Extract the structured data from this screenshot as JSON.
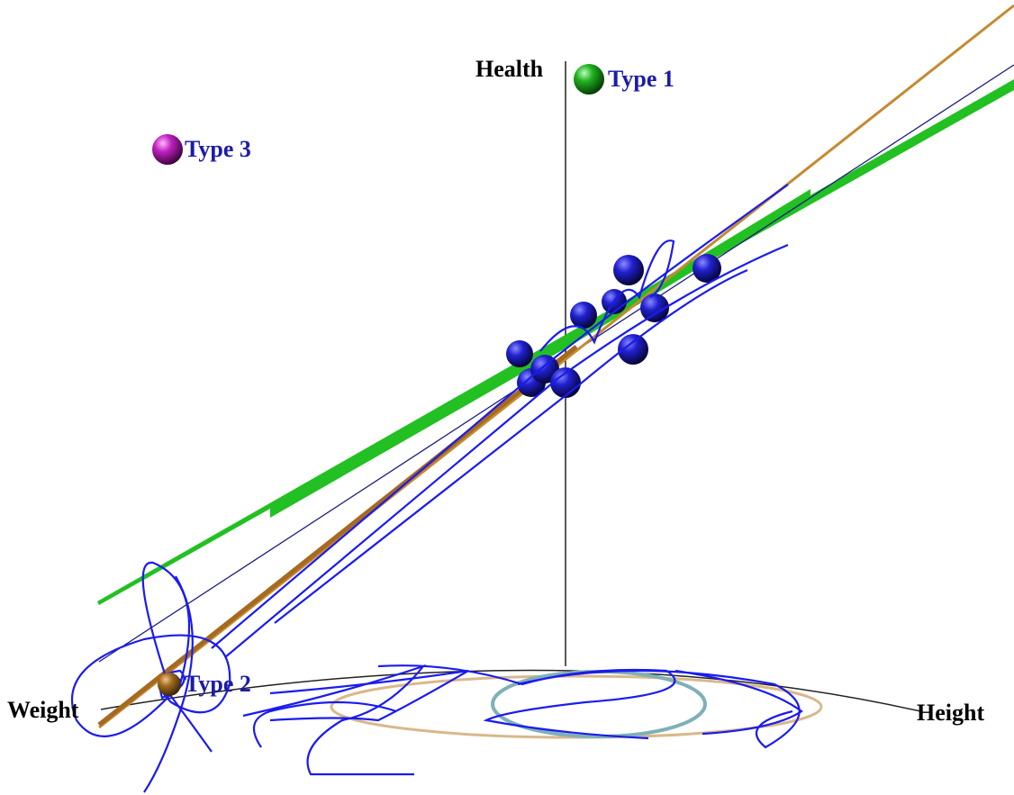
{
  "axes": {
    "vertical": "Health",
    "left": "Weight",
    "right": "Height"
  },
  "legend": [
    {
      "label": "Type 1"
    },
    {
      "label": "Type 2"
    },
    {
      "label": "Type 3"
    }
  ]
}
